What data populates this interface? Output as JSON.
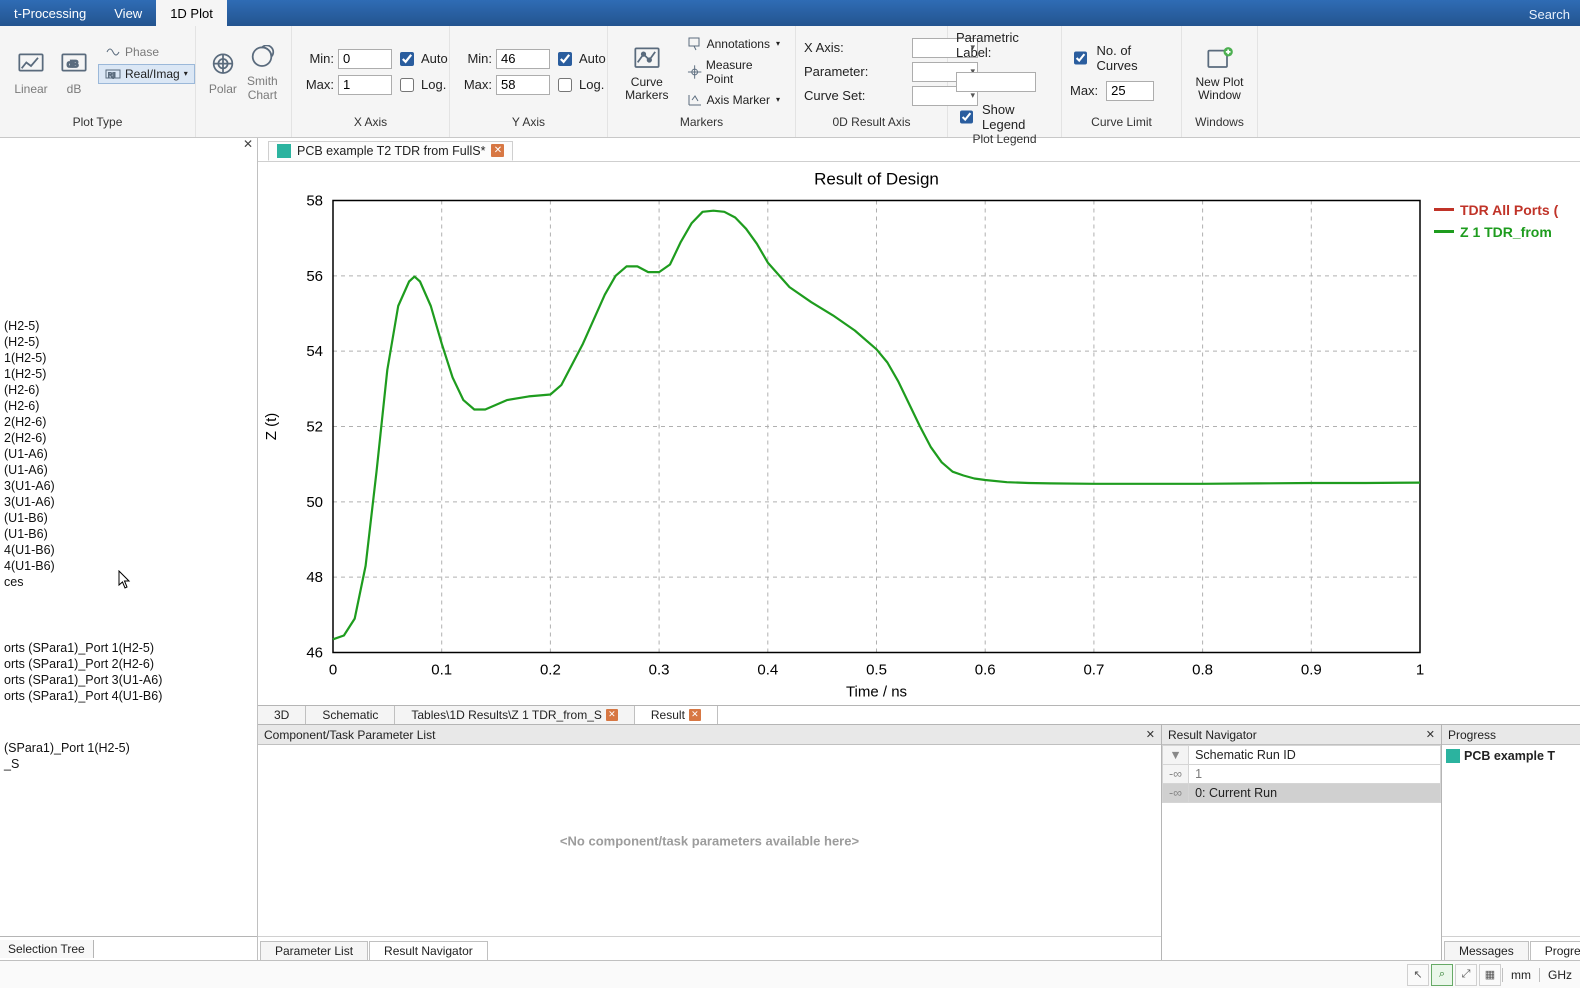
{
  "top_tabs": {
    "t0": "t-Processing",
    "t1": "View",
    "t2": "1D Plot",
    "search": "Search"
  },
  "ribbon": {
    "plot_type": {
      "linear": "Linear",
      "db": "dB",
      "phase": "Phase",
      "realimag": "Real/Imag",
      "polar": "Polar",
      "smith": "Smith\nChart",
      "label": "Plot Type"
    },
    "x_axis": {
      "min_lbl": "Min:",
      "min": "0",
      "max_lbl": "Max:",
      "max": "1",
      "auto": "Auto",
      "log": "Log.",
      "label": "X Axis"
    },
    "y_axis": {
      "min_lbl": "Min:",
      "min": "46",
      "max_lbl": "Max:",
      "max": "58",
      "auto": "Auto",
      "log": "Log.",
      "label": "Y Axis"
    },
    "markers": {
      "cm": "Curve\nMarkers",
      "ann": "Annotations",
      "mp": "Measure Point",
      "am": "Axis Marker",
      "label": "Markers"
    },
    "od_axis": {
      "xaxis": "X Axis:",
      "param": "Parameter:",
      "cset": "Curve Set:",
      "label": "0D Result Axis"
    },
    "legend": {
      "plabel": "Parametric Label:",
      "show": "Show Legend",
      "label": "Plot Legend"
    },
    "limit": {
      "ncurves": "No. of Curves",
      "max_lbl": "Max:",
      "max": "25",
      "label": "Curve Limit"
    },
    "window": {
      "npw": "New Plot\nWindow",
      "label": "Windows"
    }
  },
  "file_tab": "PCB example T2 TDR from FullS*",
  "tree_items": [
    "(H2-5)",
    "(H2-5)",
    "1(H2-5)",
    "1(H2-5)",
    "(H2-6)",
    "(H2-6)",
    "2(H2-6)",
    "2(H2-6)",
    "(U1-A6)",
    "(U1-A6)",
    "3(U1-A6)",
    "3(U1-A6)",
    "(U1-B6)",
    "(U1-B6)",
    "4(U1-B6)",
    "4(U1-B6)",
    "ces"
  ],
  "tree_items2": [
    "orts (SPara1)_Port 1(H2-5)",
    "orts (SPara1)_Port 2(H2-6)",
    "orts (SPara1)_Port 3(U1-A6)",
    "orts (SPara1)_Port 4(U1-B6)"
  ],
  "tree_items3": [
    "(SPara1)_Port 1(H2-5)",
    "_S"
  ],
  "tree_footer_tab": "Selection Tree",
  "chart": {
    "title": "Result of Design",
    "ylabel": "Z (t)",
    "xlabel": "Time / ns",
    "xlim": [
      0,
      1
    ],
    "xtick_step": 0.1,
    "ylim": [
      46,
      58
    ],
    "ytick_step": 2,
    "grid_color": "#b0b0b0",
    "bg": "#ffffff",
    "axis_color": "#000000",
    "title_fontsize": 17,
    "label_fontsize": 15,
    "tick_fontsize": 15,
    "series": [
      {
        "name": "TDR All Ports (",
        "color": "#c03328",
        "width": 2,
        "data": []
      },
      {
        "name": "Z 1 TDR_from",
        "color": "#1e9c1e",
        "width": 2.2,
        "data": [
          [
            0.0,
            46.35
          ],
          [
            0.01,
            46.45
          ],
          [
            0.02,
            46.9
          ],
          [
            0.03,
            48.3
          ],
          [
            0.04,
            50.8
          ],
          [
            0.05,
            53.5
          ],
          [
            0.06,
            55.2
          ],
          [
            0.07,
            55.85
          ],
          [
            0.075,
            55.98
          ],
          [
            0.08,
            55.85
          ],
          [
            0.09,
            55.2
          ],
          [
            0.1,
            54.2
          ],
          [
            0.11,
            53.3
          ],
          [
            0.12,
            52.7
          ],
          [
            0.13,
            52.45
          ],
          [
            0.14,
            52.45
          ],
          [
            0.16,
            52.7
          ],
          [
            0.18,
            52.8
          ],
          [
            0.2,
            52.85
          ],
          [
            0.21,
            53.1
          ],
          [
            0.23,
            54.2
          ],
          [
            0.25,
            55.5
          ],
          [
            0.26,
            56.0
          ],
          [
            0.27,
            56.25
          ],
          [
            0.28,
            56.25
          ],
          [
            0.29,
            56.1
          ],
          [
            0.3,
            56.1
          ],
          [
            0.31,
            56.3
          ],
          [
            0.32,
            56.9
          ],
          [
            0.33,
            57.4
          ],
          [
            0.34,
            57.7
          ],
          [
            0.35,
            57.73
          ],
          [
            0.36,
            57.7
          ],
          [
            0.37,
            57.55
          ],
          [
            0.38,
            57.25
          ],
          [
            0.39,
            56.85
          ],
          [
            0.4,
            56.35
          ],
          [
            0.42,
            55.7
          ],
          [
            0.44,
            55.3
          ],
          [
            0.46,
            54.95
          ],
          [
            0.48,
            54.55
          ],
          [
            0.5,
            54.05
          ],
          [
            0.51,
            53.7
          ],
          [
            0.52,
            53.2
          ],
          [
            0.53,
            52.6
          ],
          [
            0.54,
            52.0
          ],
          [
            0.55,
            51.45
          ],
          [
            0.56,
            51.05
          ],
          [
            0.57,
            50.8
          ],
          [
            0.58,
            50.7
          ],
          [
            0.59,
            50.62
          ],
          [
            0.6,
            50.58
          ],
          [
            0.62,
            50.52
          ],
          [
            0.64,
            50.5
          ],
          [
            0.66,
            50.49
          ],
          [
            0.7,
            50.48
          ],
          [
            0.75,
            50.48
          ],
          [
            0.8,
            50.48
          ],
          [
            0.85,
            50.49
          ],
          [
            0.9,
            50.5
          ],
          [
            0.95,
            50.5
          ],
          [
            1.0,
            50.51
          ]
        ]
      }
    ]
  },
  "view_tabs": {
    "v0": "3D",
    "v1": "Schematic",
    "v2": "Tables\\1D Results\\Z 1 TDR_from_S",
    "v3": "Result"
  },
  "panel1": {
    "title": "Component/Task Parameter List",
    "empty": "<No component/task parameters available here>"
  },
  "panel2": {
    "title": "Result Navigator",
    "col": "Schematic Run ID",
    "r0": "1",
    "r1": "0: Current Run"
  },
  "panel3": {
    "title": "Progress",
    "item": "PCB example T"
  },
  "bottom_tabs_left": {
    "t0": "Parameter List",
    "t1": "Result Navigator"
  },
  "bottom_tabs_right": {
    "t0": "Messages",
    "t1": "Progress"
  },
  "status": {
    "u0": "mm",
    "u1": "GHz"
  }
}
